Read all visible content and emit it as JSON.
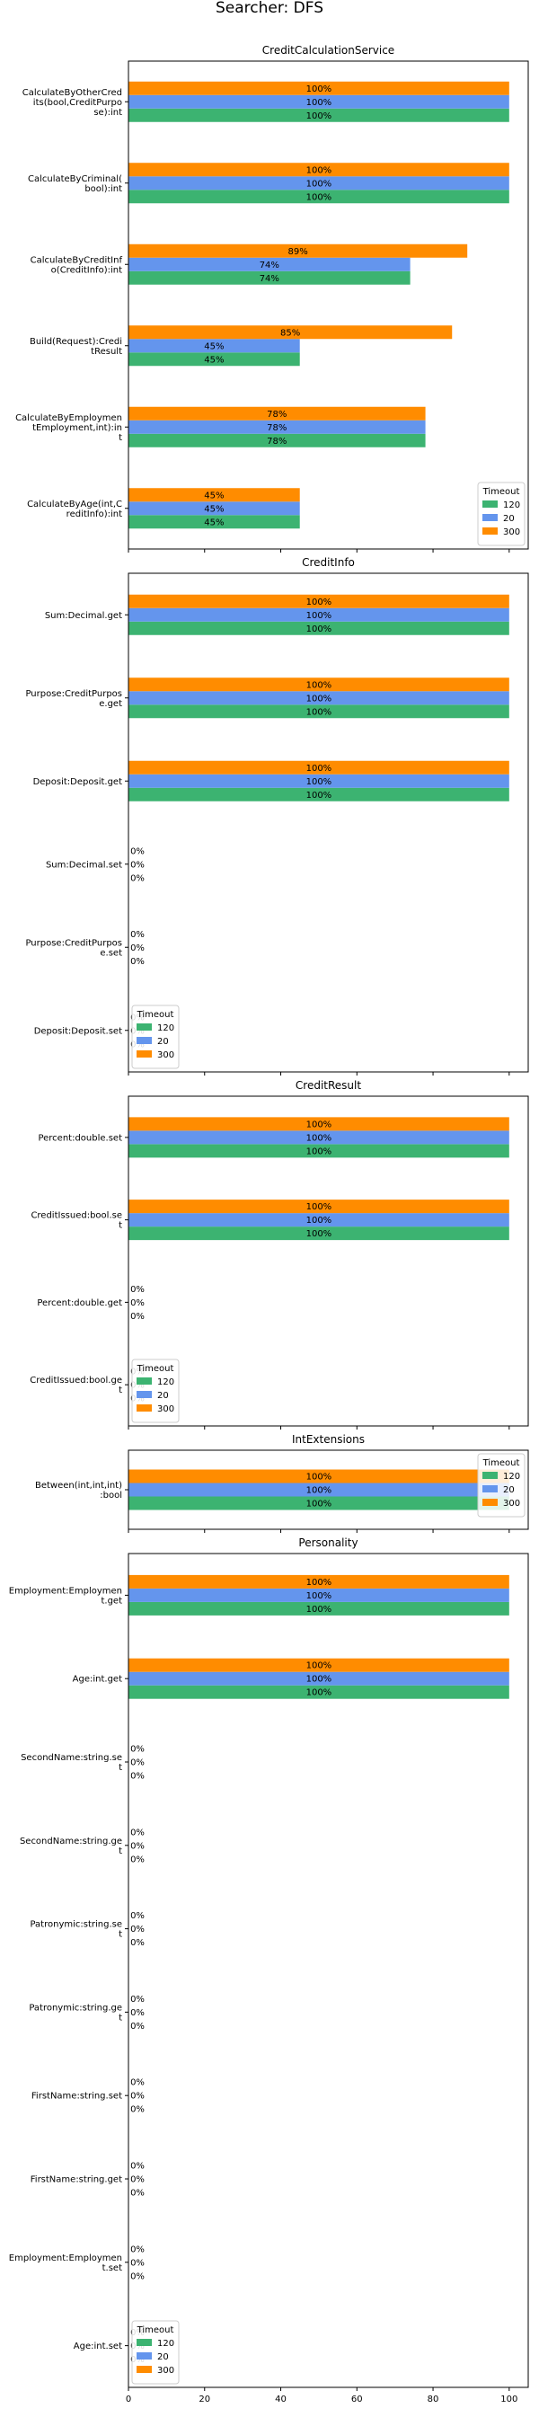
{
  "suptitle": "Searcher: DFS",
  "legend": {
    "title": "Timeout",
    "entries": [
      {
        "label": "120",
        "color": "#3cb371"
      },
      {
        "label": "20",
        "color": "#6495ed"
      },
      {
        "label": "300",
        "color": "#ff8c00"
      }
    ]
  },
  "chart_data": [
    {
      "type": "bar",
      "orientation": "horizontal",
      "title": "CreditCalculationService",
      "legend_position": "lower-right",
      "categories": [
        "CalculateByOtherCred\nits(bool,CreditPurpo\nse):int",
        "CalculateByCriminal(\nbool):int",
        "CalculateByCreditInf\no(CreditInfo):int",
        "Build(Request):Credi\ntResult",
        "CalculateByEmploymen\ntEmployment,int):in\nt",
        "CalculateByAge(int,C\nreditInfo):int"
      ],
      "series": [
        {
          "name": "120",
          "values": [
            100,
            100,
            74,
            45,
            78,
            45
          ],
          "labels": [
            "100%",
            "100%",
            "74%",
            "45%",
            "78%",
            "45%"
          ]
        },
        {
          "name": "20",
          "values": [
            100,
            100,
            74,
            45,
            78,
            45
          ],
          "labels": [
            "100%",
            "100%",
            "74%",
            "45%",
            "78%",
            "45%"
          ]
        },
        {
          "name": "300",
          "values": [
            100,
            100,
            89,
            85,
            78,
            45
          ],
          "labels": [
            "100%",
            "100%",
            "89%",
            "85%",
            "78%",
            "45%"
          ]
        }
      ],
      "xlim": [
        0,
        105
      ]
    },
    {
      "type": "bar",
      "orientation": "horizontal",
      "title": "CreditInfo",
      "legend_position": "lower-left",
      "categories": [
        "Sum:Decimal.get",
        "Purpose:CreditPurpos\ne.get",
        "Deposit:Deposit.get",
        "Sum:Decimal.set",
        "Purpose:CreditPurpos\ne.set",
        "Deposit:Deposit.set"
      ],
      "series": [
        {
          "name": "120",
          "values": [
            100,
            100,
            100,
            0,
            0,
            0
          ],
          "labels": [
            "100%",
            "100%",
            "100%",
            "0%",
            "0%",
            "0%"
          ]
        },
        {
          "name": "20",
          "values": [
            100,
            100,
            100,
            0,
            0,
            0
          ],
          "labels": [
            "100%",
            "100%",
            "100%",
            "0%",
            "0%",
            "0%"
          ]
        },
        {
          "name": "300",
          "values": [
            100,
            100,
            100,
            0,
            0,
            0
          ],
          "labels": [
            "100%",
            "100%",
            "100%",
            "0%",
            "0%",
            "0%"
          ]
        }
      ],
      "xlim": [
        0,
        105
      ]
    },
    {
      "type": "bar",
      "orientation": "horizontal",
      "title": "CreditResult",
      "legend_position": "lower-left",
      "categories": [
        "Percent:double.set",
        "CreditIssued:bool.se\nt",
        "Percent:double.get",
        "CreditIssued:bool.ge\nt"
      ],
      "series": [
        {
          "name": "120",
          "values": [
            100,
            100,
            0,
            0
          ],
          "labels": [
            "100%",
            "100%",
            "0%",
            "0%"
          ]
        },
        {
          "name": "20",
          "values": [
            100,
            100,
            0,
            0
          ],
          "labels": [
            "100%",
            "100%",
            "0%",
            "0%"
          ]
        },
        {
          "name": "300",
          "values": [
            100,
            100,
            0,
            0
          ],
          "labels": [
            "100%",
            "100%",
            "0%",
            "0%"
          ]
        }
      ],
      "xlim": [
        0,
        105
      ]
    },
    {
      "type": "bar",
      "orientation": "horizontal",
      "title": "IntExtensions",
      "legend_position": "upper-right",
      "categories": [
        "Between(int,int,int)\n:bool"
      ],
      "series": [
        {
          "name": "120",
          "values": [
            100
          ],
          "labels": [
            "100%"
          ]
        },
        {
          "name": "20",
          "values": [
            100
          ],
          "labels": [
            "100%"
          ]
        },
        {
          "name": "300",
          "values": [
            100
          ],
          "labels": [
            "100%"
          ]
        }
      ],
      "xlim": [
        0,
        105
      ]
    },
    {
      "type": "bar",
      "orientation": "horizontal",
      "title": "Personality",
      "legend_position": "lower-left",
      "categories": [
        "Employment:Employmen\nt.get",
        "Age:int.get",
        "SecondName:string.se\nt",
        "SecondName:string.ge\nt",
        "Patronymic:string.se\nt",
        "Patronymic:string.ge\nt",
        "FirstName:string.set",
        "FirstName:string.get",
        "Employment:Employmen\nt.set",
        "Age:int.set"
      ],
      "series": [
        {
          "name": "120",
          "values": [
            100,
            100,
            0,
            0,
            0,
            0,
            0,
            0,
            0,
            0
          ],
          "labels": [
            "100%",
            "100%",
            "0%",
            "0%",
            "0%",
            "0%",
            "0%",
            "0%",
            "0%",
            "0%"
          ]
        },
        {
          "name": "20",
          "values": [
            100,
            100,
            0,
            0,
            0,
            0,
            0,
            0,
            0,
            0
          ],
          "labels": [
            "100%",
            "100%",
            "0%",
            "0%",
            "0%",
            "0%",
            "0%",
            "0%",
            "0%",
            "0%"
          ]
        },
        {
          "name": "300",
          "values": [
            100,
            100,
            0,
            0,
            0,
            0,
            0,
            0,
            0,
            0
          ],
          "labels": [
            "100%",
            "100%",
            "0%",
            "0%",
            "0%",
            "0%",
            "0%",
            "0%",
            "0%",
            "0%"
          ]
        }
      ],
      "xlim": [
        0,
        105
      ],
      "xticks": [
        0,
        20,
        40,
        60,
        80,
        100
      ]
    }
  ]
}
